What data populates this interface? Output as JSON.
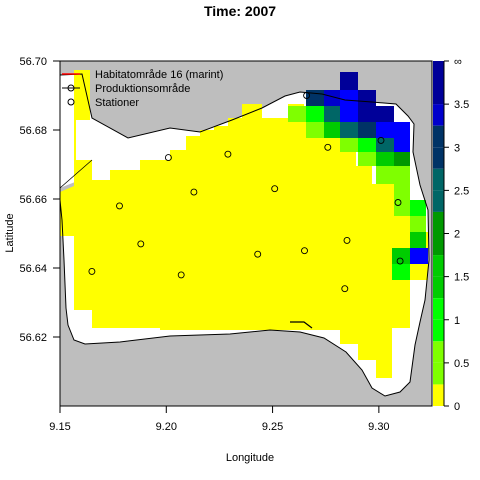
{
  "chart_data": {
    "type": "heatmap",
    "title": "Time: 2007",
    "xlabel": "Longitude",
    "ylabel": "Latitude",
    "xlim": [
      9.15,
      9.325
    ],
    "ylim": [
      56.6,
      56.7
    ],
    "xticks": [
      "9.15",
      "9.20",
      "9.25",
      "9.30"
    ],
    "yticks": [
      "56.62",
      "56.64",
      "56.66",
      "56.68",
      "56.70"
    ],
    "legend": {
      "placement": "top-left",
      "entries": [
        {
          "label": "Habitatområde 16 (marint)",
          "symbol": "line",
          "color": "#ff0000"
        },
        {
          "label": "Produktionsområde",
          "symbol": "line",
          "color": "#000000"
        },
        {
          "label": "Stationer",
          "symbol": "circle",
          "color": "#000000"
        }
      ]
    },
    "colorbar": {
      "tick_labels": [
        "0",
        "0.5",
        "1",
        "1.5",
        "2",
        "2.5",
        "3",
        "3.5",
        "∞"
      ],
      "colors": [
        "#ffff00",
        "#7fff00",
        "#00ff00",
        "#00cc00",
        "#009900",
        "#006666",
        "#003366",
        "#0000cc",
        "#0000ff",
        "#000099"
      ]
    },
    "colors": {
      "land": "#bebebe",
      "water": "#ffffff",
      "c0": "#ffff00",
      "c1": "#7fff00",
      "c2": "#00ff00",
      "c3": "#00cc00",
      "c4": "#009900",
      "c5": "#006666",
      "c6": "#003366",
      "c7": "#0000cc",
      "c8": "#0000ff",
      "c9": "#000099"
    },
    "stations": [
      {
        "lon": 9.266,
        "lat": 56.69
      },
      {
        "lon": 9.201,
        "lat": 56.672
      },
      {
        "lon": 9.229,
        "lat": 56.673
      },
      {
        "lon": 9.276,
        "lat": 56.675
      },
      {
        "lon": 9.301,
        "lat": 56.677
      },
      {
        "lon": 9.251,
        "lat": 56.663
      },
      {
        "lon": 9.213,
        "lat": 56.662
      },
      {
        "lon": 9.178,
        "lat": 56.658
      },
      {
        "lon": 9.309,
        "lat": 56.659
      },
      {
        "lon": 9.188,
        "lat": 56.647
      },
      {
        "lon": 9.285,
        "lat": 56.648
      },
      {
        "lon": 9.243,
        "lat": 56.644
      },
      {
        "lon": 9.265,
        "lat": 56.645
      },
      {
        "lon": 9.31,
        "lat": 56.642
      },
      {
        "lon": 9.165,
        "lat": 56.639
      },
      {
        "lon": 9.207,
        "lat": 56.638
      },
      {
        "lon": 9.284,
        "lat": 56.634
      }
    ]
  }
}
